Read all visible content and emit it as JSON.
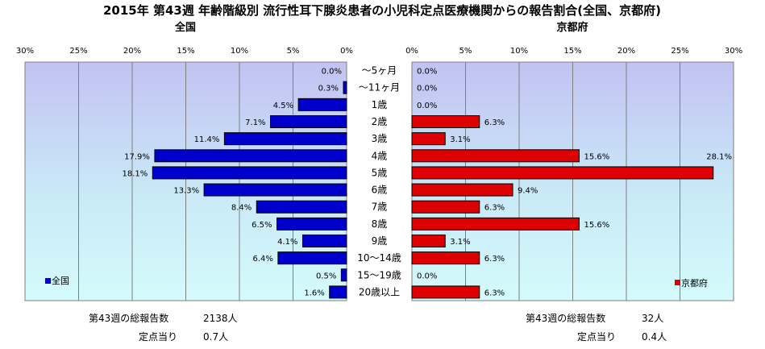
{
  "chart_data": {
    "type": "bar",
    "title": "2015年 第43週 年齢階級別 流行性耳下腺炎患者の小児科定点医療機関からの報告割合(全国、京都府)",
    "categories": [
      "～5ヶ月",
      "～11ヶ月",
      "1歳",
      "2歳",
      "3歳",
      "4歳",
      "5歳",
      "6歳",
      "7歳",
      "8歳",
      "9歳",
      "10～14歳",
      "15～19歳",
      "20歳以上"
    ],
    "series": [
      {
        "name": "全国",
        "color": "#0000cc",
        "values": [
          0.0,
          0.3,
          4.5,
          7.1,
          11.4,
          17.9,
          18.1,
          13.3,
          8.4,
          6.5,
          4.1,
          6.4,
          0.5,
          1.6
        ],
        "labels": [
          "0.0%",
          "0.3%",
          "4.5%",
          "7.1%",
          "11.4%",
          "17.9%",
          "18.1%",
          "13.3%",
          "8.4%",
          "6.5%",
          "4.1%",
          "6.4%",
          "0.5%",
          "1.6%"
        ]
      },
      {
        "name": "京都府",
        "color": "#dd0000",
        "values": [
          0.0,
          0.0,
          0.0,
          6.3,
          3.1,
          15.6,
          28.1,
          9.4,
          6.3,
          15.6,
          3.1,
          6.3,
          0.0,
          6.3
        ],
        "labels": [
          "0.0%",
          "0.0%",
          "0.0%",
          "6.3%",
          "3.1%",
          "15.6%",
          "28.1%",
          "9.4%",
          "6.3%",
          "15.6%",
          "3.1%",
          "6.3%",
          "0.0%",
          "6.3%"
        ]
      }
    ],
    "panel_titles": [
      "全国",
      "京都府"
    ],
    "xlim": [
      0,
      30
    ],
    "ticks": [
      30,
      25,
      20,
      15,
      10,
      5,
      0
    ],
    "tick_labels_left": [
      "30%",
      "25%",
      "20%",
      "15%",
      "10%",
      "5%",
      "0%"
    ],
    "tick_labels_right": [
      "0%",
      "5%",
      "10%",
      "15%",
      "20%",
      "25%",
      "30%"
    ],
    "grid": true,
    "legend": [
      {
        "name": "全国",
        "placement": "bottom-left"
      },
      {
        "name": "京都府",
        "placement": "bottom-right"
      }
    ],
    "footers": {
      "left": {
        "total_label": "第43週の総報告数",
        "total_value": "2138人",
        "per_label": "定点当り",
        "per_value": "0.7人"
      },
      "right": {
        "total_label": "第43週の総報告数",
        "total_value": "32人",
        "per_label": "定点当り",
        "per_value": "0.4人"
      }
    }
  }
}
